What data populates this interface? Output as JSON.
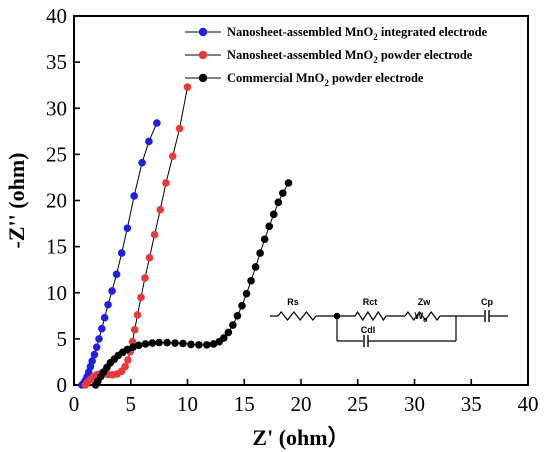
{
  "chart_data": {
    "type": "scatter",
    "xlabel": "Z' (ohm）",
    "ylabel": "-Z'' (ohm)",
    "xlim": [
      0,
      40
    ],
    "ylim": [
      0,
      40
    ],
    "xticks": [
      "0",
      "5",
      "10",
      "15",
      "20",
      "25",
      "30",
      "35",
      "40"
    ],
    "yticks": [
      "0",
      "5",
      "10",
      "15",
      "20",
      "25",
      "30",
      "35",
      "40"
    ],
    "grid": false,
    "legend_position": "top-right",
    "series": [
      {
        "name": "Nanosheet-assembled MnO2 integrated electrode",
        "legend_prefix": "Nanosheet-assembled  MnO",
        "legend_sub": "2",
        "legend_suffix": " integrated electrode",
        "color": "#1f1fe6",
        "x": [
          0.7,
          0.85,
          1.0,
          1.15,
          1.3,
          1.45,
          1.6,
          1.8,
          2.0,
          2.2,
          2.45,
          2.7,
          3.0,
          3.35,
          3.75,
          4.2,
          4.7,
          5.3,
          6.0,
          6.6,
          7.3
        ],
        "y": [
          0.0,
          0.2,
          0.5,
          0.9,
          1.4,
          2.0,
          2.6,
          3.3,
          4.1,
          5.0,
          6.1,
          7.3,
          8.7,
          10.2,
          12.0,
          14.3,
          17.0,
          20.5,
          24.1,
          26.4,
          28.4
        ]
      },
      {
        "name": "Nanosheet-assembled MnO2 powder electrode",
        "legend_prefix": "Nanosheet-assembled  MnO",
        "legend_sub": "2",
        "legend_suffix": " powder electrode",
        "color": "#e83a3a",
        "x": [
          1.0,
          1.2,
          1.45,
          1.7,
          2.0,
          2.3,
          2.6,
          3.0,
          3.4,
          3.8,
          4.2,
          4.5,
          4.75,
          4.95,
          5.15,
          5.35,
          5.6,
          5.9,
          6.25,
          6.65,
          7.1,
          7.6,
          8.1,
          8.7,
          9.3,
          10.0
        ],
        "y": [
          0.0,
          0.3,
          0.6,
          0.9,
          1.1,
          1.2,
          1.2,
          1.15,
          1.1,
          1.2,
          1.5,
          2.0,
          2.7,
          3.6,
          4.7,
          6.0,
          7.6,
          9.5,
          11.6,
          13.8,
          16.3,
          19.0,
          21.9,
          24.8,
          27.8,
          32.3
        ]
      },
      {
        "name": "Commercial MnO2 powder electrode",
        "legend_prefix": "Commercial MnO",
        "legend_sub": "2",
        "legend_suffix": " powder electrode",
        "color": "#000000",
        "x": [
          1.9,
          2.1,
          2.35,
          2.6,
          2.9,
          3.2,
          3.55,
          3.9,
          4.3,
          4.7,
          5.2,
          5.7,
          6.3,
          6.9,
          7.5,
          8.2,
          8.9,
          9.6,
          10.3,
          11.0,
          11.7,
          12.3,
          12.8,
          13.2,
          13.6,
          14.0,
          14.4,
          14.8,
          15.2,
          15.6,
          16.0,
          16.4,
          16.8,
          17.2,
          17.6,
          18.0,
          18.4,
          18.9
        ],
        "y": [
          0.0,
          0.4,
          0.9,
          1.4,
          1.9,
          2.4,
          2.8,
          3.2,
          3.55,
          3.85,
          4.1,
          4.3,
          4.45,
          4.55,
          4.6,
          4.6,
          4.55,
          4.5,
          4.4,
          4.35,
          4.35,
          4.45,
          4.7,
          5.1,
          5.7,
          6.5,
          7.5,
          8.6,
          9.9,
          11.3,
          12.8,
          14.3,
          15.8,
          17.2,
          18.5,
          19.8,
          20.8,
          21.9
        ]
      }
    ],
    "circuit": {
      "labels": [
        "Rs",
        "Rct",
        "Zw",
        "Cp",
        "Cdl"
      ],
      "wo_main": "W",
      "wo_sub": "o"
    }
  }
}
